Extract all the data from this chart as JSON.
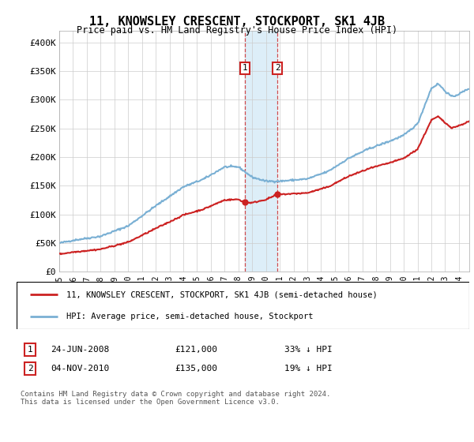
{
  "title": "11, KNOWSLEY CRESCENT, STOCKPORT, SK1 4JB",
  "subtitle": "Price paid vs. HM Land Registry's House Price Index (HPI)",
  "hpi_color": "#7ab0d4",
  "price_color": "#cc2222",
  "highlight_color": "#ddeef8",
  "vline_color": "#cc2222",
  "legend_line1": "11, KNOWSLEY CRESCENT, STOCKPORT, SK1 4JB (semi-detached house)",
  "legend_line2": "HPI: Average price, semi-detached house, Stockport",
  "footnote": "Contains HM Land Registry data © Crown copyright and database right 2024.\nThis data is licensed under the Open Government Licence v3.0.",
  "ylim": [
    0,
    420000
  ],
  "yticks": [
    0,
    50000,
    100000,
    150000,
    200000,
    250000,
    300000,
    350000,
    400000
  ],
  "ytick_labels": [
    "£0",
    "£50K",
    "£100K",
    "£150K",
    "£200K",
    "£250K",
    "£300K",
    "£350K",
    "£400K"
  ],
  "sale1_year": 2008.46,
  "sale1_price": 121000,
  "sale2_year": 2010.83,
  "sale2_price": 135000,
  "xmin": 1995,
  "xmax": 2024.75
}
